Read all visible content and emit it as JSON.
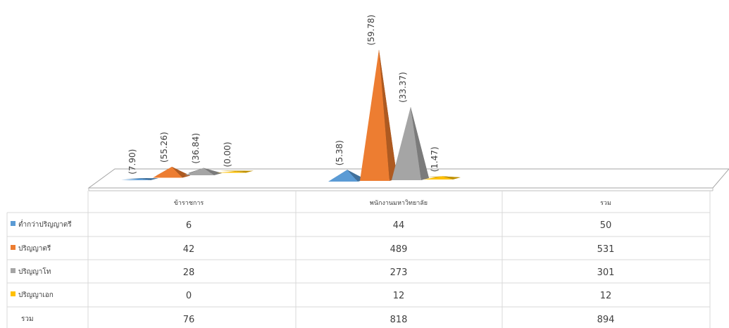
{
  "chart_data": {
    "type": "3d-cone-column-with-data-table",
    "categories": [
      "ข้าราชการ",
      "พนักงานมหาวิทยาลัย",
      "รวม"
    ],
    "series": [
      {
        "name": "ต่ำกว่าปริญญาตรี",
        "color": "#5b9bd5",
        "values": [
          6,
          44,
          50
        ],
        "percent_labels": [
          "(7.90)",
          "(5.38)",
          null
        ]
      },
      {
        "name": "ปริญญาตรี",
        "color": "#ed7d31",
        "values": [
          42,
          489,
          531
        ],
        "percent_labels": [
          "(55.26)",
          "(59.78)",
          null
        ]
      },
      {
        "name": "ปริญญาโท",
        "color": "#a5a5a5",
        "values": [
          28,
          273,
          301
        ],
        "percent_labels": [
          "(36.84)",
          "(33.37)",
          null
        ]
      },
      {
        "name": "ปริญญาเอก",
        "color": "#ffc000",
        "values": [
          0,
          12,
          12
        ],
        "percent_labels": [
          "(0.00)",
          "(1.47)",
          null
        ]
      }
    ],
    "total_row": {
      "label": "รวม",
      "values": [
        76,
        818,
        894
      ]
    },
    "plotted_quantity": "percent_labels",
    "legend": "table-left",
    "grid": false
  }
}
